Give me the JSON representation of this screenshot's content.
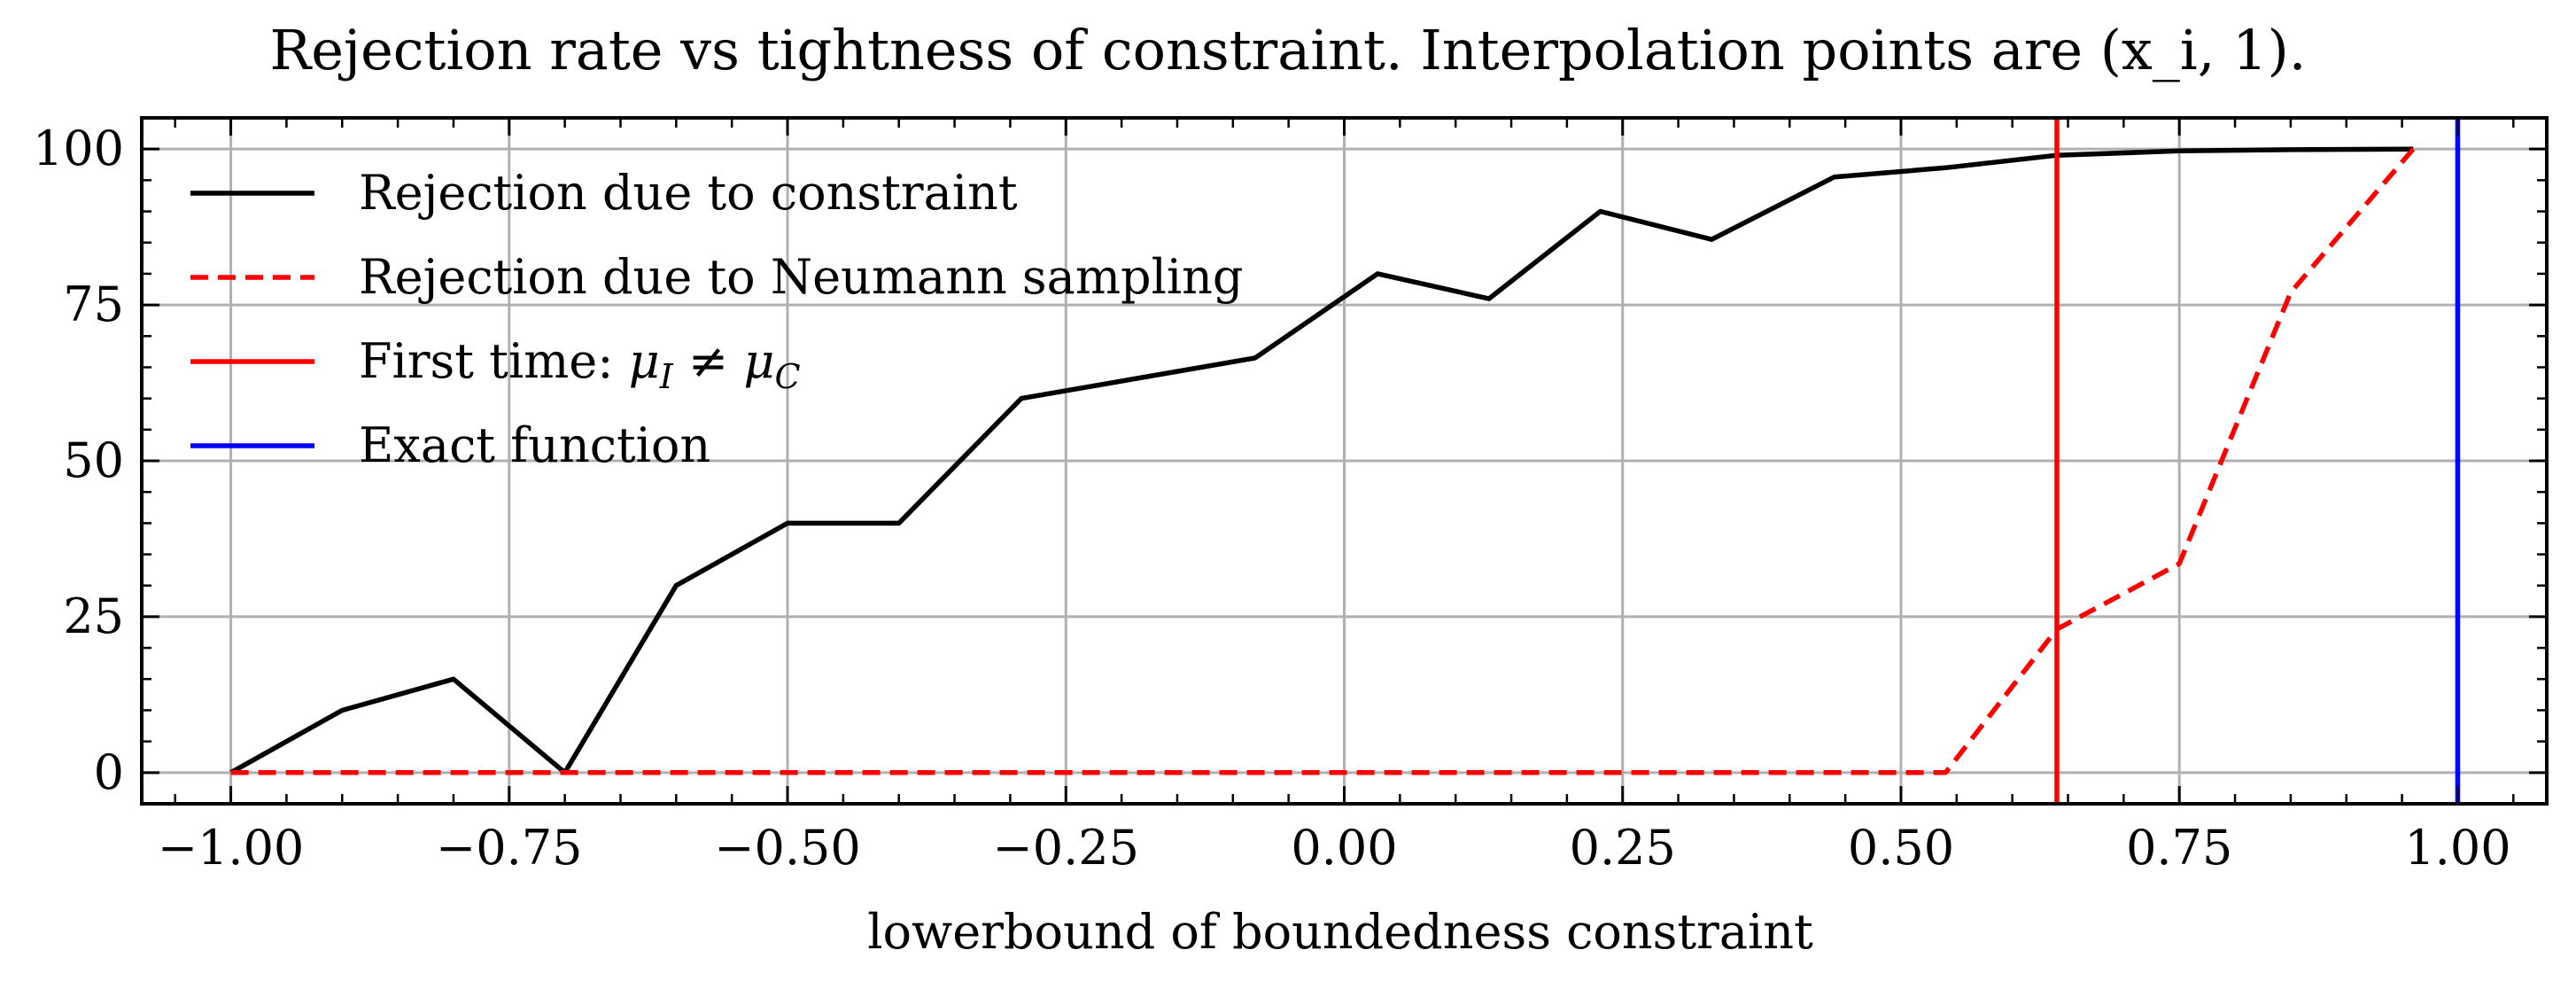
{
  "chart_data": {
    "type": "line",
    "title": "Rejection rate vs tightness of constraint. Interpolation points are (x_i, 1).",
    "xlabel": "lowerbound of boundedness constraint",
    "ylabel": "",
    "xlim": [
      -1.08,
      1.08
    ],
    "ylim": [
      -5,
      105
    ],
    "grid": true,
    "legend_position": "top-left",
    "xticks": [
      -1.0,
      -0.75,
      -0.5,
      -0.25,
      0.0,
      0.25,
      0.5,
      0.75,
      1.0
    ],
    "xtick_labels": [
      "−1.00",
      "−0.75",
      "−0.50",
      "−0.25",
      "0.00",
      "0.25",
      "0.50",
      "0.75",
      "1.00"
    ],
    "yticks": [
      0,
      25,
      50,
      75,
      100
    ],
    "ytick_labels": [
      "0",
      "25",
      "50",
      "75",
      "100"
    ],
    "series": [
      {
        "name": "Rejection due to constraint",
        "color": "#000000",
        "style": "solid",
        "x": [
          -1.0,
          -0.9,
          -0.8,
          -0.7,
          -0.6,
          -0.5,
          -0.4,
          -0.29,
          -0.08,
          0.03,
          0.13,
          0.23,
          0.33,
          0.44,
          0.54,
          0.64,
          0.75,
          0.85,
          0.96
        ],
        "y": [
          0,
          10,
          15,
          0,
          30,
          40,
          40,
          60,
          66.5,
          80,
          76,
          90,
          85.5,
          95.5,
          97,
          99,
          99.7,
          99.9,
          100
        ]
      },
      {
        "name": "Rejection due to Neumann sampling",
        "color": "#ff0000",
        "style": "dashed",
        "x": [
          -1.0,
          -0.9,
          -0.8,
          -0.7,
          -0.6,
          -0.5,
          -0.4,
          -0.29,
          -0.08,
          0.03,
          0.13,
          0.23,
          0.33,
          0.44,
          0.54,
          0.64,
          0.75,
          0.85,
          0.96
        ],
        "y": [
          0,
          0,
          0,
          0,
          0,
          0,
          0,
          0,
          0,
          0,
          0,
          0,
          0,
          0,
          0,
          23,
          33.5,
          77,
          100
        ]
      }
    ],
    "vertical_lines": [
      {
        "name": "First time: μI ≠ μC",
        "x": 0.64,
        "color": "#ff0000"
      },
      {
        "name": "Exact function",
        "x": 1.0,
        "color": "#0000ff"
      }
    ],
    "legend": [
      {
        "label_parts": [
          "Rejection due to constraint"
        ],
        "color": "#000000",
        "style": "solid"
      },
      {
        "label_parts": [
          "Rejection due to Neumann sampling"
        ],
        "color": "#ff0000",
        "style": "dashed"
      },
      {
        "label_parts": [
          "First time: ",
          "μ",
          "I",
          " ≠ ",
          "μ",
          "C"
        ],
        "color": "#ff0000",
        "style": "solid"
      },
      {
        "label_parts": [
          "Exact function"
        ],
        "color": "#0000ff",
        "style": "solid"
      }
    ]
  }
}
